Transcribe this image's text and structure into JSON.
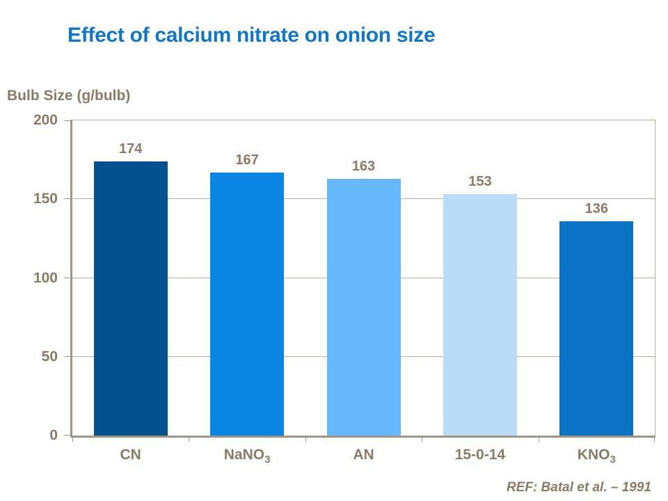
{
  "title": {
    "text": "Effect of calcium nitrate on onion size"
  },
  "axis": {
    "y_title": "Bulb Size (g/bulb)"
  },
  "footer": {
    "reference": "REF: Batal et al. – 1991"
  },
  "colors": {
    "background": "#FFFFFF",
    "title": "#0E76CC",
    "text": "#8A7A66",
    "axis_line": "#A39586",
    "gridline": "#B9AD9E"
  },
  "chart_data": {
    "type": "bar",
    "title": "Effect of calcium nitrate on onion size",
    "xlabel": "",
    "ylabel": "Bulb Size (g/bulb)",
    "categories": [
      "CN",
      "NaNO₃",
      "AN",
      "15-0-14",
      "KNO₃"
    ],
    "category_parts": [
      {
        "main": "CN",
        "sub": ""
      },
      {
        "main": "NaNO",
        "sub": "3"
      },
      {
        "main": "AN",
        "sub": ""
      },
      {
        "main": "15-0-14",
        "sub": ""
      },
      {
        "main": "KNO",
        "sub": "3"
      }
    ],
    "values": [
      174,
      167,
      163,
      153,
      136
    ],
    "data_labels": [
      "174",
      "167",
      "163",
      "153",
      "136"
    ],
    "bar_colors": [
      "#05508F",
      "#0C86E4",
      "#66B9F9",
      "#B9DDF8",
      "#0A73C4"
    ],
    "ylim": [
      0,
      200
    ],
    "yticks": [
      0,
      50,
      100,
      150,
      200
    ],
    "grid": true,
    "legend_position": "none",
    "annotation": "REF: Batal et al. – 1991"
  }
}
